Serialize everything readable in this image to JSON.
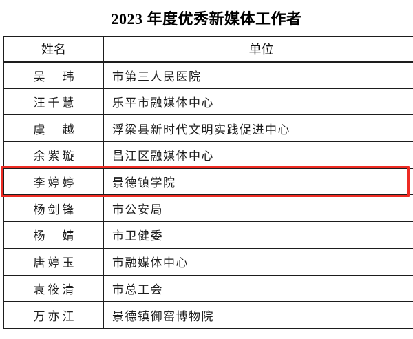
{
  "title": "2023 年度优秀新媒体工作者",
  "table": {
    "headers": {
      "name": "姓名",
      "unit": "单位"
    },
    "rows": [
      {
        "name": "吴　玮",
        "unit": "市第三人民医院"
      },
      {
        "name": "汪千慧",
        "unit": "乐平市融媒体中心"
      },
      {
        "name": "虞　越",
        "unit": "浮梁县新时代文明实践促进中心"
      },
      {
        "name": "余紫璇",
        "unit": "昌江区融媒体中心"
      },
      {
        "name": "李婷婷",
        "unit": "景德镇学院"
      },
      {
        "name": "杨剑锋",
        "unit": "市公安局"
      },
      {
        "name": "杨　婧",
        "unit": "市卫健委"
      },
      {
        "name": "唐婷玉",
        "unit": "市融媒体中心"
      },
      {
        "name": "袁筱清",
        "unit": "市总工会"
      },
      {
        "name": "万亦江",
        "unit": "景德镇御窑博物院"
      }
    ]
  },
  "highlight": {
    "row_index": 4,
    "color": "#ee2b23"
  },
  "colors": {
    "border": "#1d1d1d",
    "text": "#1d1d1d",
    "background": "#ffffff"
  }
}
